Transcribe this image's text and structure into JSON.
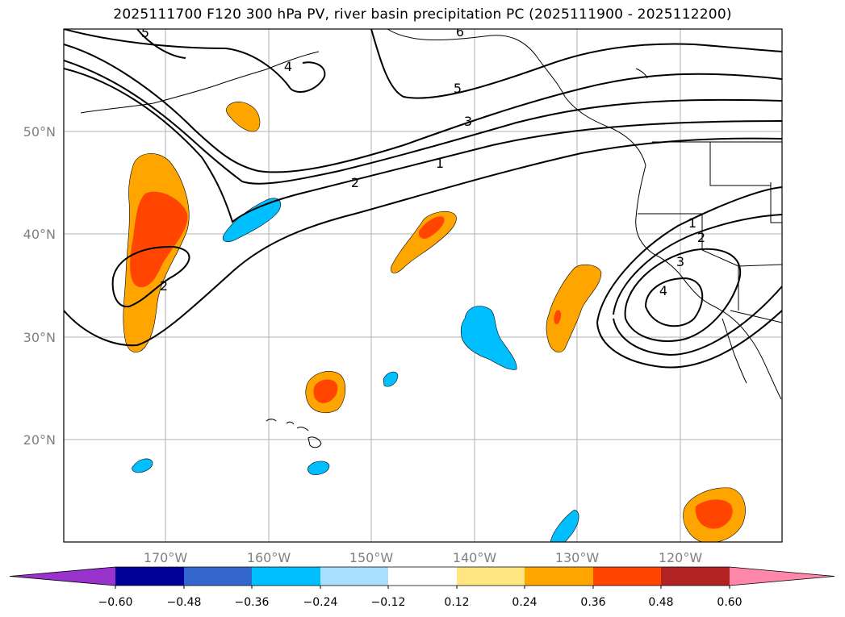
{
  "title": "2025111700 F120 300 hPa PV, river basin precipitation PC (2025111900 - 2025112200)",
  "map": {
    "lat_labels": [
      "50°N",
      "40°N",
      "30°N",
      "20°N"
    ],
    "lon_labels": [
      "170°W",
      "160°W",
      "150°W",
      "140°W",
      "130°W",
      "120°W"
    ],
    "pv_contour_labels": [
      "5",
      "4",
      "3",
      "2",
      "1",
      "2",
      "1",
      "2",
      "3",
      "4",
      "5",
      "6"
    ]
  },
  "colorbar": {
    "ticks": [
      "−0.60",
      "−0.48",
      "−0.36",
      "−0.24",
      "−0.12",
      "0.12",
      "0.24",
      "0.36",
      "0.48",
      "0.60"
    ],
    "colors": [
      "#9933cc",
      "#000099",
      "#3366cc",
      "#00bfff",
      "#aadfff",
      "#ffffff",
      "#ffe680",
      "#ffa500",
      "#ff4500",
      "#b22222",
      "#ff88aa"
    ]
  },
  "fill_colors": {
    "pos_mid": "#ffa500",
    "pos_high": "#ff4500",
    "neg_mid": "#00bfff"
  }
}
